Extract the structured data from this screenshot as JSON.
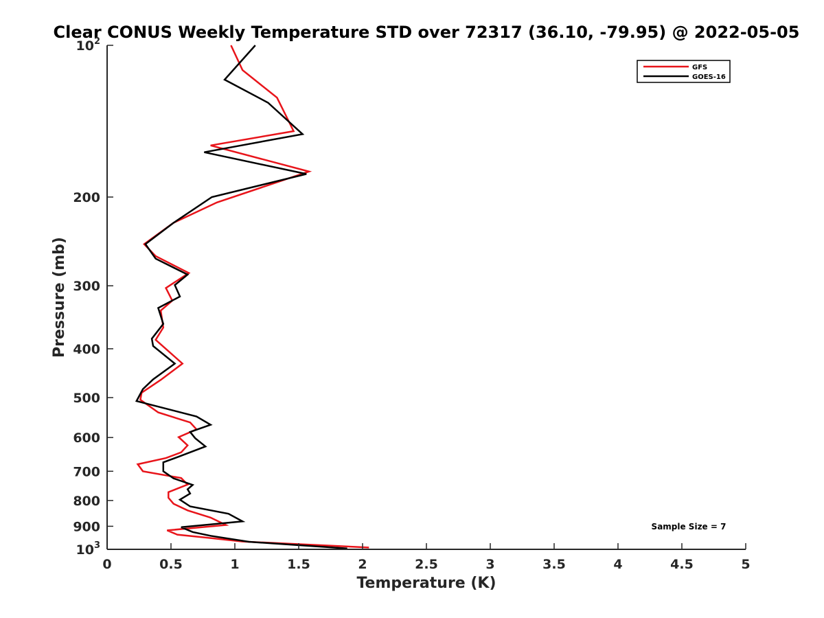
{
  "chart_data": {
    "type": "line",
    "title": "Clear CONUS Weekly Temperature STD over 72317 (36.10, -79.95) @ 2022-05-05",
    "xlabel": "Temperature (K)",
    "ylabel": "Pressure (mb)",
    "xlim": [
      0,
      5
    ],
    "ylim": [
      100,
      1000
    ],
    "y_scale": "log",
    "y_reversed": true,
    "grid": false,
    "legend_position": "top-right",
    "x_ticks": [
      "0",
      "0.5",
      "1",
      "1.5",
      "2",
      "2.5",
      "3",
      "3.5",
      "4",
      "4.5",
      "5"
    ],
    "y_ticks": [
      {
        "value": 100,
        "base": "10",
        "exp": "2"
      },
      {
        "value": 200,
        "label": "200"
      },
      {
        "value": 300,
        "label": "300"
      },
      {
        "value": 400,
        "label": "400"
      },
      {
        "value": 500,
        "label": "500"
      },
      {
        "value": 600,
        "label": "600"
      },
      {
        "value": 700,
        "label": "700"
      },
      {
        "value": 800,
        "label": "800"
      },
      {
        "value": 900,
        "label": "900"
      },
      {
        "value": 1000,
        "base": "10",
        "exp": "3"
      }
    ],
    "annotation": "Sample Size = 7",
    "series": [
      {
        "name": "GFS",
        "color": "#e8141a",
        "x": [
          0.97,
          1.06,
          1.33,
          1.46,
          0.81,
          1.58,
          0.86,
          0.52,
          0.29,
          0.38,
          0.64,
          0.46,
          0.51,
          0.42,
          0.44,
          0.38,
          0.59,
          0.42,
          0.27,
          0.26,
          0.4,
          0.65,
          0.7,
          0.56,
          0.63,
          0.58,
          0.46,
          0.24,
          0.28,
          0.58,
          0.63,
          0.48,
          0.48,
          0.52,
          0.63,
          0.81,
          0.93,
          0.47,
          0.55,
          0.78,
          1.06,
          2.05
        ],
        "y": [
          100,
          112,
          127,
          148,
          158,
          178,
          205,
          225,
          248,
          262,
          283,
          303,
          321,
          336,
          363,
          384,
          428,
          461,
          489,
          505,
          535,
          560,
          578,
          599,
          622,
          642,
          659,
          678,
          700,
          722,
          744,
          770,
          790,
          812,
          837,
          865,
          895,
          917,
          935,
          948,
          965,
          992
        ]
      },
      {
        "name": "GOES-16",
        "color": "#000000",
        "x": [
          1.16,
          0.92,
          1.26,
          1.53,
          0.76,
          1.56,
          0.82,
          0.52,
          0.3,
          0.38,
          0.63,
          0.53,
          0.57,
          0.4,
          0.44,
          0.35,
          0.36,
          0.53,
          0.36,
          0.28,
          0.23,
          0.7,
          0.81,
          0.65,
          0.69,
          0.77,
          0.56,
          0.44,
          0.44,
          0.52,
          0.67,
          0.63,
          0.65,
          0.57,
          0.65,
          0.95,
          1.06,
          0.58,
          0.67,
          0.81,
          1.11,
          1.88
        ],
        "y": [
          100,
          117,
          130,
          150,
          163,
          180,
          200,
          225,
          248,
          265,
          285,
          299,
          315,
          332,
          357,
          382,
          395,
          428,
          460,
          481,
          508,
          545,
          566,
          585,
          602,
          625,
          655,
          672,
          700,
          723,
          745,
          760,
          775,
          797,
          822,
          850,
          880,
          904,
          924,
          940,
          966,
          996
        ]
      }
    ]
  }
}
